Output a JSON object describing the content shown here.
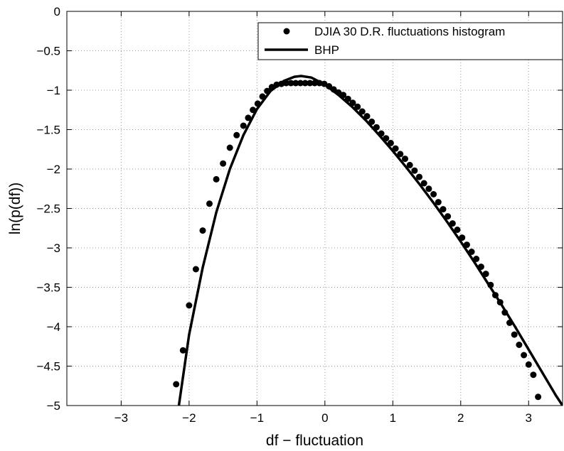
{
  "chart_data": {
    "type": "scatter",
    "xlabel": "df − fluctuation",
    "ylabel": "ln(p(df))",
    "xlim": [
      -3.8,
      3.5
    ],
    "ylim": [
      -5,
      0
    ],
    "xticks": [
      -3,
      -2,
      -1,
      0,
      1,
      2,
      3
    ],
    "xtick_labels": [
      "−3",
      "−2",
      "−1",
      "0",
      "1",
      "2",
      "3"
    ],
    "yticks": [
      0,
      -0.5,
      -1,
      -1.5,
      -2,
      -2.5,
      -3,
      -3.5,
      -4,
      -4.5,
      -5
    ],
    "ytick_labels": [
      "0",
      "−0.5",
      "−1",
      "−1.5",
      "−2",
      "−2.5",
      "−3",
      "−3.5",
      "−4",
      "−4.5",
      "−5"
    ],
    "grid": true,
    "legend_position": "top-right",
    "colors": {
      "series": "#000000",
      "background": "#ffffff",
      "grid": "#999999"
    },
    "series": [
      {
        "name": "DJIA 30 D.R. fluctuations histogram",
        "kind": "scatter",
        "x": [
          -2.19,
          -2.09,
          -2.0,
          -1.9,
          -1.8,
          -1.7,
          -1.6,
          -1.5,
          -1.4,
          -1.3,
          -1.2,
          -1.13,
          -1.06,
          -0.99,
          -0.92,
          -0.85,
          -0.78,
          -0.71,
          -0.64,
          -0.57,
          -0.5,
          -0.43,
          -0.36,
          -0.29,
          -0.22,
          -0.15,
          -0.08,
          -0.01,
          0.06,
          0.13,
          0.2,
          0.27,
          0.34,
          0.41,
          0.48,
          0.55,
          0.62,
          0.69,
          0.76,
          0.83,
          0.9,
          0.97,
          1.04,
          1.11,
          1.18,
          1.25,
          1.32,
          1.39,
          1.46,
          1.53,
          1.6,
          1.67,
          1.74,
          1.81,
          1.88,
          1.95,
          2.02,
          2.09,
          2.16,
          2.23,
          2.3,
          2.37,
          2.44,
          2.51,
          2.58,
          2.65,
          2.72,
          2.79,
          2.86,
          2.93,
          3.0,
          3.07,
          3.14
        ],
        "y": [
          -4.73,
          -4.3,
          -3.73,
          -3.27,
          -2.78,
          -2.44,
          -2.13,
          -1.93,
          -1.73,
          -1.57,
          -1.45,
          -1.35,
          -1.25,
          -1.17,
          -1.08,
          -1.01,
          -0.96,
          -0.93,
          -0.92,
          -0.91,
          -0.91,
          -0.91,
          -0.91,
          -0.91,
          -0.91,
          -0.91,
          -0.91,
          -0.92,
          -0.95,
          -0.99,
          -1.03,
          -1.06,
          -1.11,
          -1.16,
          -1.21,
          -1.27,
          -1.33,
          -1.4,
          -1.47,
          -1.55,
          -1.61,
          -1.67,
          -1.74,
          -1.81,
          -1.87,
          -1.95,
          -2.02,
          -2.1,
          -2.18,
          -2.25,
          -2.32,
          -2.42,
          -2.51,
          -2.6,
          -2.69,
          -2.77,
          -2.87,
          -2.96,
          -3.05,
          -3.14,
          -3.24,
          -3.33,
          -3.47,
          -3.6,
          -3.69,
          -3.82,
          -3.95,
          -4.1,
          -4.23,
          -4.36,
          -4.48,
          -4.61,
          -4.89
        ]
      },
      {
        "name": "BHP",
        "kind": "line",
        "x": [
          -2.15,
          -2.0,
          -1.8,
          -1.6,
          -1.4,
          -1.2,
          -1.0,
          -0.8,
          -0.6,
          -0.45,
          -0.35,
          -0.2,
          0.0,
          0.2,
          0.4,
          0.6,
          0.8,
          1.0,
          1.2,
          1.4,
          1.6,
          1.8,
          2.0,
          2.2,
          2.4,
          2.6,
          2.8,
          3.0,
          3.2,
          3.4,
          3.5
        ],
        "y": [
          -5.0,
          -4.1,
          -3.25,
          -2.55,
          -2.0,
          -1.57,
          -1.24,
          -1.01,
          -0.88,
          -0.83,
          -0.82,
          -0.84,
          -0.93,
          -1.06,
          -1.21,
          -1.38,
          -1.57,
          -1.77,
          -1.98,
          -2.2,
          -2.43,
          -2.67,
          -2.92,
          -3.18,
          -3.45,
          -3.72,
          -4.0,
          -4.29,
          -4.58,
          -4.87,
          -5.0
        ]
      }
    ]
  }
}
